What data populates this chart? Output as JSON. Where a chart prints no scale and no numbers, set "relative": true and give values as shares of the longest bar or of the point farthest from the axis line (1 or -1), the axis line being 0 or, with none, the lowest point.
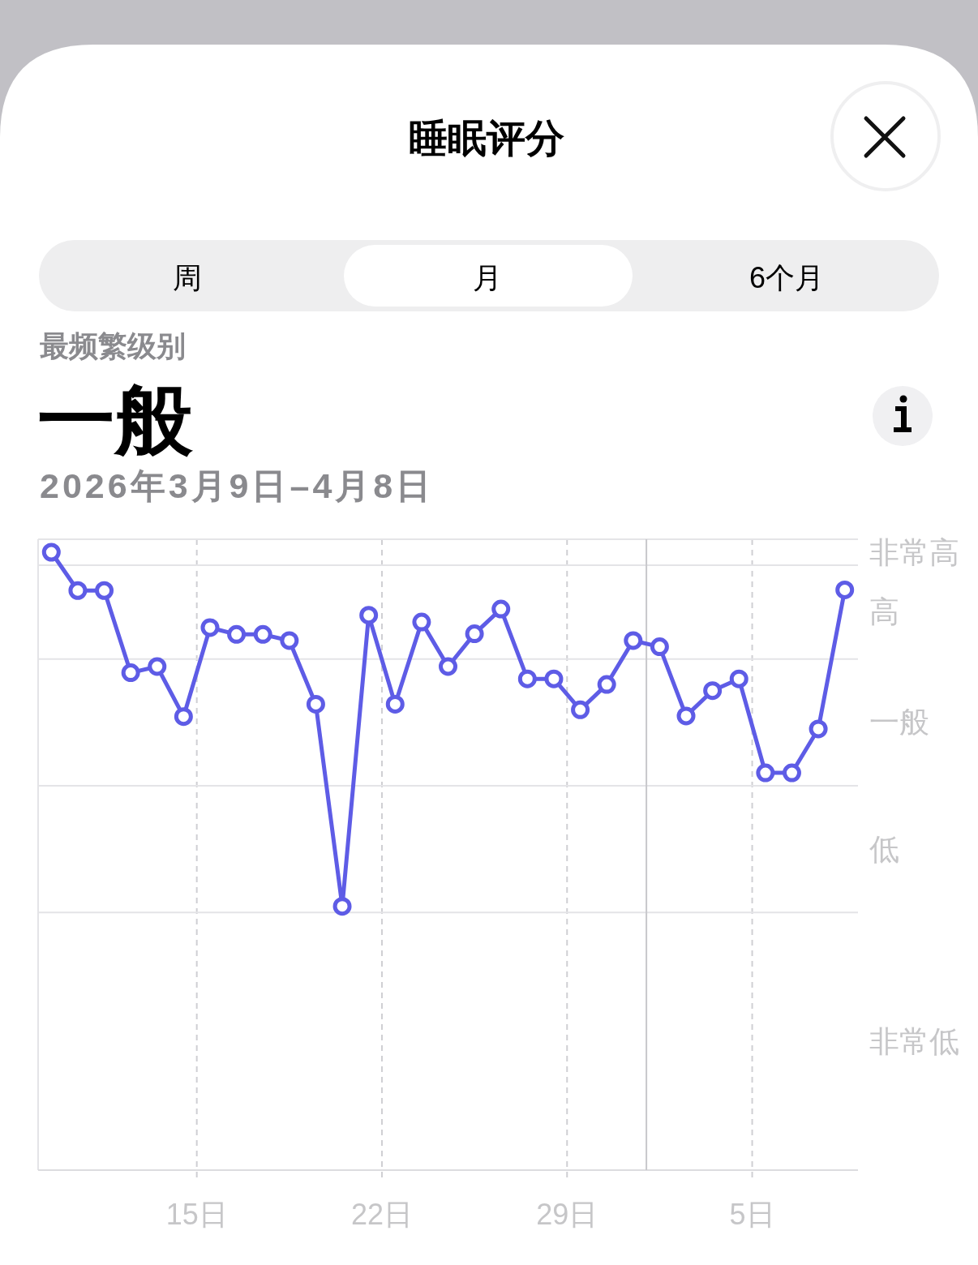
{
  "chart_data": {
    "type": "line",
    "title": "睡眠评分",
    "subtitle": "2026年3月9日–4月8日",
    "annotations": [
      "周",
      "月",
      "6个月",
      "最频繁级别",
      "一般",
      "非常高",
      "高",
      "一般",
      "低",
      "非常低"
    ],
    "x": [
      "2026-03-09T12:00",
      "2026-03-10T12:00",
      "2026-03-11T12:00",
      "2026-03-12T12:00",
      "2026-03-13T12:00",
      "2026-03-14T12:00",
      "2026-03-15T12:00",
      "2026-03-16T12:00",
      "2026-03-17T12:00",
      "2026-03-18T12:00",
      "2026-03-19T12:00",
      "2026-03-20T12:00",
      "2026-03-21T12:00",
      "2026-03-22T12:00",
      "2026-03-23T12:00",
      "2026-03-24T12:00",
      "2026-03-25T12:00",
      "2026-03-26T12:00",
      "2026-03-27T12:00",
      "2026-03-28T12:00",
      "2026-03-29T12:00",
      "2026-03-30T12:00",
      "2026-03-31T12:00",
      "2026-04-01T12:00",
      "2026-04-02T12:00",
      "2026-04-03T12:00",
      "2026-04-04T12:00",
      "2026-04-05T12:00",
      "2026-04-06T12:00",
      "2026-04-07T12:00",
      "2026-04-08T12:00"
    ],
    "xlim": [
      "2026-03-09",
      "2026-04-09"
    ],
    "xticks": [
      {
        "value": "2026-03-15",
        "label": "15日"
      },
      {
        "value": "2026-03-22",
        "label": "22日"
      },
      {
        "value": "2026-03-29",
        "label": "29日"
      },
      {
        "value": "2026-04-05",
        "label": "5日"
      }
    ],
    "series": [
      {
        "color": "#5e5ce6",
        "values": [
          1,
          0.938,
          0.938,
          0.805,
          0.815,
          0.734,
          0.878,
          0.867,
          0.867,
          0.857,
          0.754,
          0.427,
          0.898,
          0.754,
          0.887,
          0.815,
          0.868,
          0.908,
          0.795,
          0.795,
          0.745,
          0.786,
          0.857,
          0.847,
          0.735,
          0.776,
          0.795,
          0.643,
          0.643,
          0.714,
          0.939
        ]
      }
    ],
    "relative": true,
    "ref_lines": [
      {
        "axis": "y",
        "value": 0.417,
        "color": "#e4e4e7"
      },
      {
        "axis": "y",
        "value": 0.622,
        "color": "#e4e4e7"
      },
      {
        "axis": "y",
        "value": 0.827,
        "color": "#e4e4e7"
      },
      {
        "axis": "y",
        "value": 0.979,
        "color": "#e4e4e7"
      },
      {
        "axis": "y",
        "value": 1.021,
        "color": "#e4e4e7"
      },
      {
        "axis": "x",
        "value": "2026-04-01",
        "color": "#c8c8cc"
      }
    ],
    "grid": "x",
    "marker": "circle",
    "line_style": "solid",
    "tick_labels": "x"
  }
}
